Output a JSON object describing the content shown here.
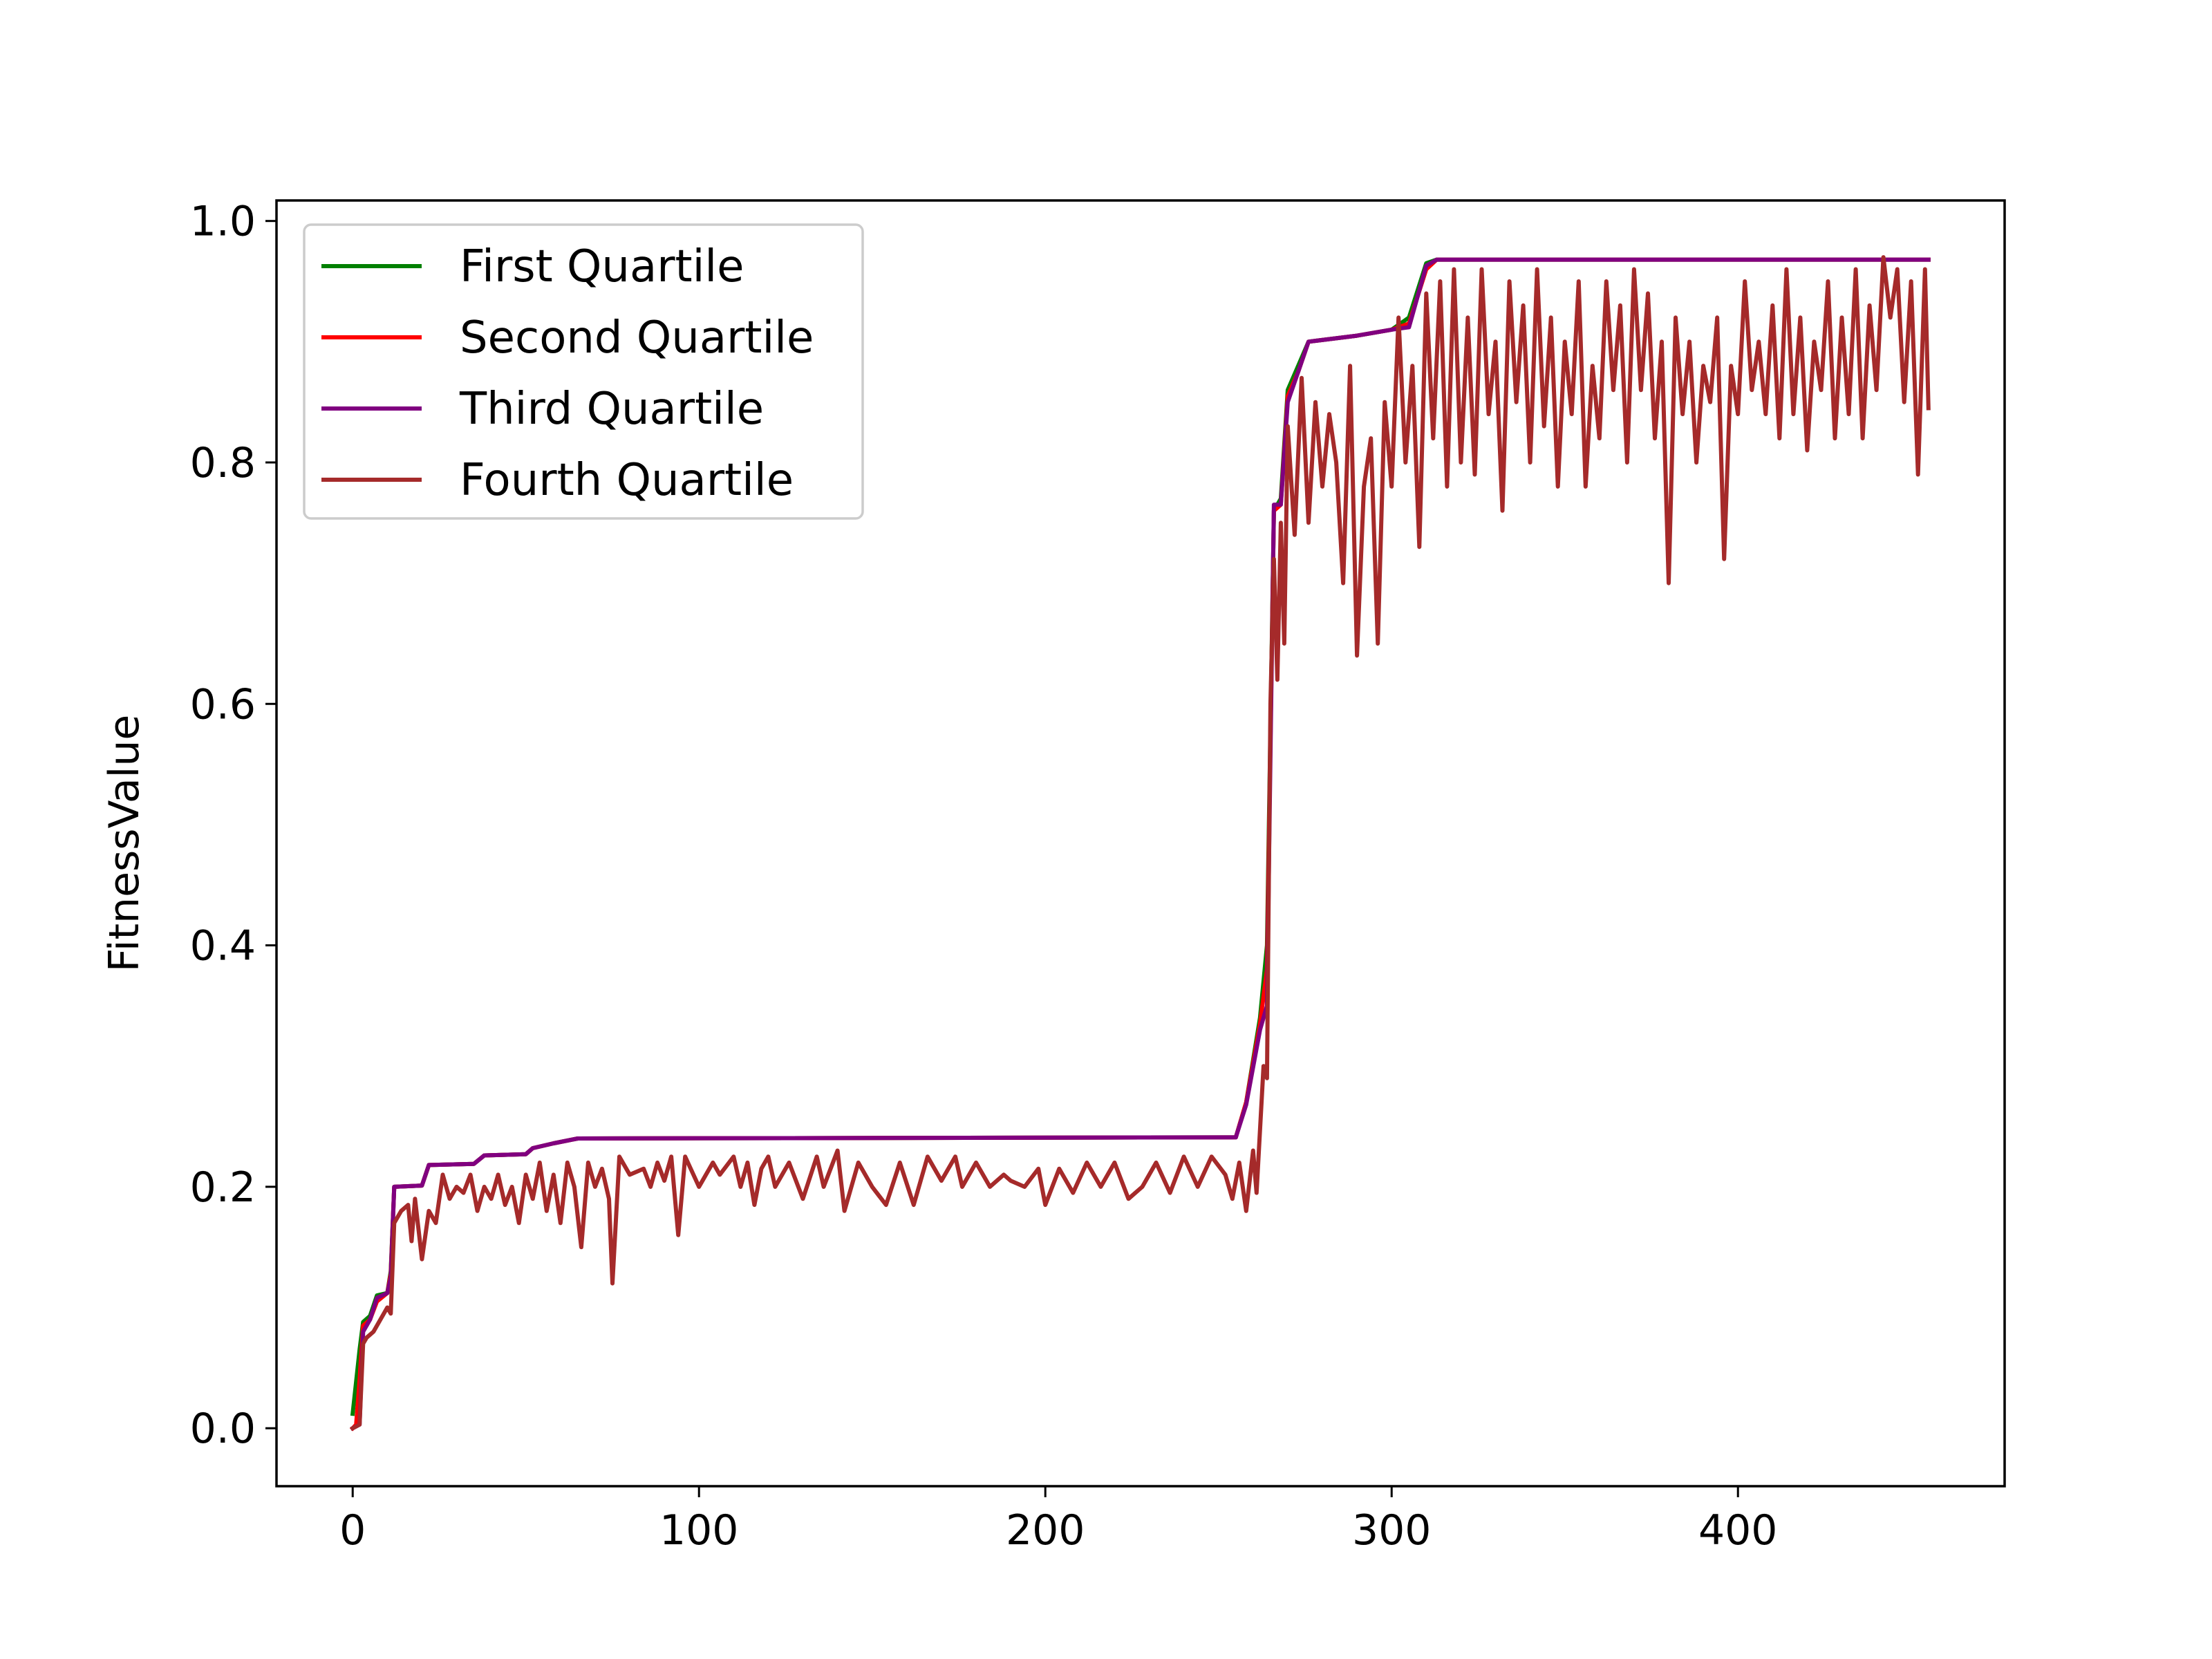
{
  "chart_data": {
    "type": "line",
    "title": "",
    "xlabel": "",
    "ylabel": "FitnessValue",
    "xlim": [
      -22,
      477
    ],
    "ylim": [
      -0.048,
      1.017
    ],
    "xticks": [
      0,
      100,
      200,
      300,
      400
    ],
    "xtick_labels": [
      "0",
      "100",
      "200",
      "300",
      "400"
    ],
    "yticks": [
      0.0,
      0.2,
      0.4,
      0.6,
      0.8,
      1.0
    ],
    "ytick_labels": [
      "0.0",
      "0.2",
      "0.4",
      "0.6",
      "0.8",
      "1.0"
    ],
    "grid": false,
    "legend_position": "upper-left",
    "series": [
      {
        "name": "First Quartile",
        "color": "#008000",
        "points": [
          [
            0,
            0.012
          ],
          [
            2,
            0.065
          ],
          [
            3,
            0.088
          ],
          [
            5,
            0.093
          ],
          [
            7,
            0.11
          ],
          [
            10,
            0.112
          ],
          [
            11,
            0.13
          ],
          [
            12,
            0.2
          ],
          [
            20,
            0.201
          ],
          [
            22,
            0.218
          ],
          [
            35,
            0.219
          ],
          [
            38,
            0.226
          ],
          [
            50,
            0.227
          ],
          [
            52,
            0.232
          ],
          [
            58,
            0.236
          ],
          [
            65,
            0.24
          ],
          [
            255,
            0.241
          ],
          [
            258,
            0.27
          ],
          [
            262,
            0.34
          ],
          [
            264,
            0.4
          ],
          [
            266,
            0.76
          ],
          [
            268,
            0.77
          ],
          [
            270,
            0.86
          ],
          [
            273,
            0.88
          ],
          [
            276,
            0.9
          ],
          [
            290,
            0.905
          ],
          [
            300,
            0.91
          ],
          [
            305,
            0.92
          ],
          [
            310,
            0.965
          ],
          [
            313,
            0.968
          ],
          [
            455,
            0.968
          ]
        ]
      },
      {
        "name": "Second Quartile",
        "color": "#ff0000",
        "points": [
          [
            0,
            0.0
          ],
          [
            1,
            0.003
          ],
          [
            2,
            0.04
          ],
          [
            3,
            0.085
          ],
          [
            5,
            0.09
          ],
          [
            7,
            0.105
          ],
          [
            10,
            0.112
          ],
          [
            11,
            0.128
          ],
          [
            12,
            0.2
          ],
          [
            20,
            0.201
          ],
          [
            22,
            0.218
          ],
          [
            35,
            0.219
          ],
          [
            38,
            0.226
          ],
          [
            50,
            0.227
          ],
          [
            52,
            0.232
          ],
          [
            58,
            0.236
          ],
          [
            65,
            0.24
          ],
          [
            255,
            0.241
          ],
          [
            258,
            0.27
          ],
          [
            262,
            0.335
          ],
          [
            264,
            0.38
          ],
          [
            266,
            0.76
          ],
          [
            268,
            0.765
          ],
          [
            270,
            0.855
          ],
          [
            273,
            0.875
          ],
          [
            276,
            0.9
          ],
          [
            290,
            0.905
          ],
          [
            300,
            0.91
          ],
          [
            305,
            0.915
          ],
          [
            310,
            0.96
          ],
          [
            313,
            0.968
          ],
          [
            455,
            0.968
          ]
        ]
      },
      {
        "name": "Third Quartile",
        "color": "#800080",
        "points": [
          [
            0,
            0.0
          ],
          [
            2,
            0.003
          ],
          [
            3,
            0.08
          ],
          [
            5,
            0.09
          ],
          [
            7,
            0.108
          ],
          [
            10,
            0.112
          ],
          [
            11,
            0.125
          ],
          [
            12,
            0.2
          ],
          [
            20,
            0.201
          ],
          [
            22,
            0.218
          ],
          [
            35,
            0.219
          ],
          [
            38,
            0.226
          ],
          [
            50,
            0.227
          ],
          [
            52,
            0.232
          ],
          [
            58,
            0.236
          ],
          [
            65,
            0.24
          ],
          [
            255,
            0.241
          ],
          [
            258,
            0.268
          ],
          [
            262,
            0.33
          ],
          [
            264,
            0.35
          ],
          [
            266,
            0.765
          ],
          [
            268,
            0.765
          ],
          [
            270,
            0.85
          ],
          [
            273,
            0.875
          ],
          [
            276,
            0.9
          ],
          [
            290,
            0.905
          ],
          [
            300,
            0.91
          ],
          [
            305,
            0.912
          ],
          [
            310,
            0.963
          ],
          [
            313,
            0.968
          ],
          [
            455,
            0.968
          ]
        ]
      },
      {
        "name": "Fourth Quartile",
        "color": "#a52a2a",
        "points": [
          [
            0,
            0.0
          ],
          [
            2,
            0.003
          ],
          [
            3,
            0.07
          ],
          [
            4,
            0.075
          ],
          [
            6,
            0.08
          ],
          [
            8,
            0.09
          ],
          [
            10,
            0.1
          ],
          [
            11,
            0.095
          ],
          [
            12,
            0.17
          ],
          [
            14,
            0.18
          ],
          [
            16,
            0.185
          ],
          [
            17,
            0.155
          ],
          [
            18,
            0.19
          ],
          [
            20,
            0.14
          ],
          [
            22,
            0.18
          ],
          [
            24,
            0.17
          ],
          [
            26,
            0.21
          ],
          [
            28,
            0.19
          ],
          [
            30,
            0.2
          ],
          [
            32,
            0.195
          ],
          [
            34,
            0.21
          ],
          [
            36,
            0.18
          ],
          [
            38,
            0.2
          ],
          [
            40,
            0.19
          ],
          [
            42,
            0.21
          ],
          [
            44,
            0.185
          ],
          [
            46,
            0.2
          ],
          [
            48,
            0.17
          ],
          [
            50,
            0.21
          ],
          [
            52,
            0.19
          ],
          [
            54,
            0.22
          ],
          [
            56,
            0.18
          ],
          [
            58,
            0.21
          ],
          [
            60,
            0.17
          ],
          [
            62,
            0.22
          ],
          [
            64,
            0.2
          ],
          [
            66,
            0.15
          ],
          [
            68,
            0.22
          ],
          [
            70,
            0.2
          ],
          [
            72,
            0.215
          ],
          [
            74,
            0.19
          ],
          [
            75,
            0.12
          ],
          [
            77,
            0.225
          ],
          [
            80,
            0.21
          ],
          [
            84,
            0.215
          ],
          [
            86,
            0.2
          ],
          [
            88,
            0.22
          ],
          [
            90,
            0.205
          ],
          [
            92,
            0.225
          ],
          [
            94,
            0.16
          ],
          [
            96,
            0.225
          ],
          [
            100,
            0.2
          ],
          [
            104,
            0.22
          ],
          [
            106,
            0.21
          ],
          [
            110,
            0.225
          ],
          [
            112,
            0.2
          ],
          [
            114,
            0.22
          ],
          [
            116,
            0.185
          ],
          [
            118,
            0.215
          ],
          [
            120,
            0.225
          ],
          [
            122,
            0.2
          ],
          [
            126,
            0.22
          ],
          [
            130,
            0.19
          ],
          [
            134,
            0.225
          ],
          [
            136,
            0.2
          ],
          [
            140,
            0.23
          ],
          [
            142,
            0.18
          ],
          [
            146,
            0.22
          ],
          [
            150,
            0.2
          ],
          [
            154,
            0.185
          ],
          [
            158,
            0.22
          ],
          [
            162,
            0.185
          ],
          [
            166,
            0.225
          ],
          [
            170,
            0.205
          ],
          [
            174,
            0.225
          ],
          [
            176,
            0.2
          ],
          [
            180,
            0.22
          ],
          [
            184,
            0.2
          ],
          [
            188,
            0.21
          ],
          [
            190,
            0.205
          ],
          [
            194,
            0.2
          ],
          [
            198,
            0.215
          ],
          [
            200,
            0.185
          ],
          [
            204,
            0.215
          ],
          [
            208,
            0.195
          ],
          [
            212,
            0.22
          ],
          [
            216,
            0.2
          ],
          [
            220,
            0.22
          ],
          [
            224,
            0.19
          ],
          [
            228,
            0.2
          ],
          [
            232,
            0.22
          ],
          [
            236,
            0.195
          ],
          [
            240,
            0.225
          ],
          [
            244,
            0.2
          ],
          [
            248,
            0.225
          ],
          [
            252,
            0.21
          ],
          [
            254,
            0.19
          ],
          [
            256,
            0.22
          ],
          [
            258,
            0.18
          ],
          [
            260,
            0.23
          ],
          [
            261,
            0.195
          ],
          [
            263,
            0.3
          ],
          [
            264,
            0.29
          ],
          [
            265,
            0.6
          ],
          [
            266,
            0.72
          ],
          [
            267,
            0.62
          ],
          [
            268,
            0.75
          ],
          [
            269,
            0.65
          ],
          [
            270,
            0.83
          ],
          [
            272,
            0.74
          ],
          [
            274,
            0.87
          ],
          [
            276,
            0.75
          ],
          [
            278,
            0.85
          ],
          [
            280,
            0.78
          ],
          [
            282,
            0.84
          ],
          [
            284,
            0.8
          ],
          [
            286,
            0.7
          ],
          [
            288,
            0.88
          ],
          [
            290,
            0.64
          ],
          [
            292,
            0.78
          ],
          [
            294,
            0.82
          ],
          [
            296,
            0.65
          ],
          [
            298,
            0.85
          ],
          [
            300,
            0.78
          ],
          [
            302,
            0.92
          ],
          [
            304,
            0.8
          ],
          [
            306,
            0.88
          ],
          [
            308,
            0.73
          ],
          [
            310,
            0.94
          ],
          [
            312,
            0.82
          ],
          [
            314,
            0.95
          ],
          [
            316,
            0.78
          ],
          [
            318,
            0.96
          ],
          [
            320,
            0.8
          ],
          [
            322,
            0.92
          ],
          [
            324,
            0.79
          ],
          [
            326,
            0.96
          ],
          [
            328,
            0.84
          ],
          [
            330,
            0.9
          ],
          [
            332,
            0.76
          ],
          [
            334,
            0.95
          ],
          [
            336,
            0.85
          ],
          [
            338,
            0.93
          ],
          [
            340,
            0.8
          ],
          [
            342,
            0.96
          ],
          [
            344,
            0.83
          ],
          [
            346,
            0.92
          ],
          [
            348,
            0.78
          ],
          [
            350,
            0.9
          ],
          [
            352,
            0.84
          ],
          [
            354,
            0.95
          ],
          [
            356,
            0.78
          ],
          [
            358,
            0.88
          ],
          [
            360,
            0.82
          ],
          [
            362,
            0.95
          ],
          [
            364,
            0.86
          ],
          [
            366,
            0.93
          ],
          [
            368,
            0.8
          ],
          [
            370,
            0.96
          ],
          [
            372,
            0.86
          ],
          [
            374,
            0.94
          ],
          [
            376,
            0.82
          ],
          [
            378,
            0.9
          ],
          [
            380,
            0.7
          ],
          [
            382,
            0.92
          ],
          [
            384,
            0.84
          ],
          [
            386,
            0.9
          ],
          [
            388,
            0.8
          ],
          [
            390,
            0.88
          ],
          [
            392,
            0.85
          ],
          [
            394,
            0.92
          ],
          [
            396,
            0.72
          ],
          [
            398,
            0.88
          ],
          [
            400,
            0.84
          ],
          [
            402,
            0.95
          ],
          [
            404,
            0.86
          ],
          [
            406,
            0.9
          ],
          [
            408,
            0.84
          ],
          [
            410,
            0.93
          ],
          [
            412,
            0.82
          ],
          [
            414,
            0.96
          ],
          [
            416,
            0.84
          ],
          [
            418,
            0.92
          ],
          [
            420,
            0.81
          ],
          [
            422,
            0.9
          ],
          [
            424,
            0.86
          ],
          [
            426,
            0.95
          ],
          [
            428,
            0.82
          ],
          [
            430,
            0.92
          ],
          [
            432,
            0.84
          ],
          [
            434,
            0.96
          ],
          [
            436,
            0.82
          ],
          [
            438,
            0.93
          ],
          [
            440,
            0.86
          ],
          [
            442,
            0.97
          ],
          [
            444,
            0.92
          ],
          [
            446,
            0.96
          ],
          [
            448,
            0.85
          ],
          [
            450,
            0.95
          ],
          [
            452,
            0.79
          ],
          [
            454,
            0.96
          ],
          [
            455,
            0.845
          ]
        ]
      }
    ]
  }
}
